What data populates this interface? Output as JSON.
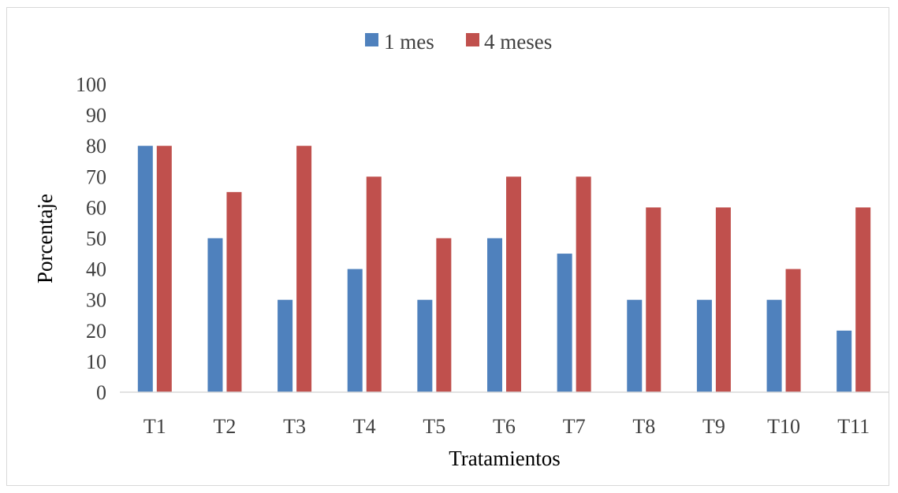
{
  "chart_data": {
    "type": "bar",
    "categories": [
      "T1",
      "T2",
      "T3",
      "T4",
      "T5",
      "T6",
      "T7",
      "T8",
      "T9",
      "T10",
      "T11"
    ],
    "series": [
      {
        "name": "1 mes",
        "color": "#4f81bd",
        "values": [
          80,
          50,
          30,
          40,
          30,
          50,
          45,
          30,
          30,
          30,
          20
        ]
      },
      {
        "name": "4 meses",
        "color": "#c0504d",
        "values": [
          80,
          65,
          80,
          70,
          50,
          70,
          70,
          60,
          60,
          40,
          60
        ]
      }
    ],
    "title": "",
    "xlabel": "Tratamientos",
    "ylabel": "Porcentaje",
    "ylim": [
      0,
      100
    ],
    "yticks": [
      "0",
      "10",
      "20",
      "30",
      "40",
      "50",
      "60",
      "70",
      "80",
      "90",
      "100"
    ],
    "grid": false,
    "legend_position": "top-center"
  }
}
